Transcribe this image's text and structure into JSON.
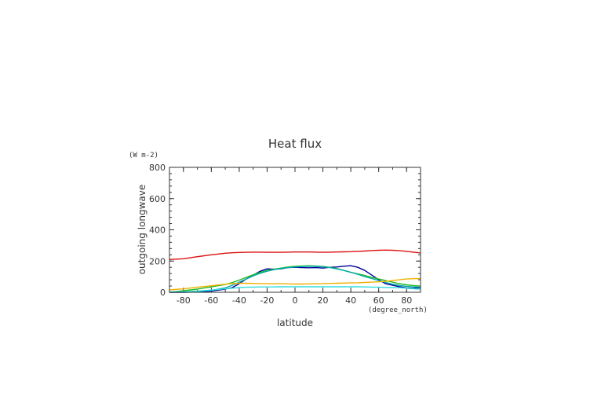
{
  "chart_data": {
    "type": "line",
    "title": "Heat flux",
    "xlabel": "latitude",
    "ylabel": "outgoing longwave",
    "x_unit": "(degree_north)",
    "y_unit": "(W m-2)",
    "xlim": [
      -90,
      90
    ],
    "ylim": [
      0,
      800
    ],
    "x_ticks": [
      -80,
      -60,
      -40,
      -20,
      0,
      20,
      40,
      60,
      80
    ],
    "y_ticks": [
      0,
      200,
      400,
      600,
      800
    ],
    "x": [
      -90,
      -80,
      -70,
      -60,
      -50,
      -45,
      -40,
      -35,
      -30,
      -25,
      -20,
      -15,
      -10,
      -5,
      0,
      5,
      10,
      15,
      20,
      25,
      30,
      35,
      40,
      45,
      50,
      55,
      60,
      65,
      70,
      75,
      80,
      85,
      90
    ],
    "series": [
      {
        "color": "#dd1111",
        "values": [
          210,
          215,
          228,
          240,
          250,
          253,
          255,
          256,
          257,
          257,
          256,
          256,
          256,
          257,
          258,
          258,
          258,
          257,
          256,
          257,
          258,
          259,
          260,
          262,
          264,
          267,
          269,
          270,
          269,
          266,
          262,
          257,
          252
        ]
      },
      {
        "color": "#00009a",
        "values": [
          0,
          0,
          2,
          8,
          20,
          30,
          55,
          85,
          110,
          135,
          150,
          148,
          150,
          158,
          160,
          158,
          157,
          158,
          155,
          160,
          162,
          167,
          170,
          160,
          140,
          110,
          80,
          55,
          45,
          35,
          28,
          25,
          30
        ]
      },
      {
        "color": "#22bb22",
        "values": [
          0,
          10,
          20,
          35,
          50,
          62,
          78,
          95,
          112,
          128,
          140,
          148,
          155,
          162,
          166,
          168,
          170,
          168,
          165,
          160,
          152,
          140,
          128,
          118,
          108,
          95,
          85,
          75,
          65,
          55,
          48,
          43,
          40
        ]
      },
      {
        "color": "#00aaaa",
        "values": [
          0,
          2,
          5,
          12,
          28,
          45,
          65,
          85,
          105,
          122,
          135,
          145,
          152,
          158,
          162,
          165,
          167,
          166,
          163,
          158,
          150,
          140,
          128,
          115,
          100,
          88,
          75,
          63,
          52,
          44,
          38,
          34,
          32
        ]
      },
      {
        "color": "#f0b000",
        "values": [
          15,
          22,
          32,
          42,
          52,
          56,
          58,
          58,
          57,
          56,
          55,
          55,
          55,
          54,
          53,
          53,
          54,
          55,
          56,
          57,
          58,
          59,
          60,
          61,
          63,
          65,
          67,
          70,
          75,
          80,
          85,
          87,
          88
        ]
      },
      {
        "color": "#33dddd",
        "values": [
          2,
          4,
          8,
          14,
          22,
          26,
          30,
          32,
          33,
          34,
          34,
          34,
          35,
          35,
          35,
          35,
          35,
          35,
          35,
          35,
          35,
          35,
          35,
          35,
          34,
          33,
          32,
          31,
          30,
          29,
          26,
          22,
          20
        ]
      }
    ]
  }
}
